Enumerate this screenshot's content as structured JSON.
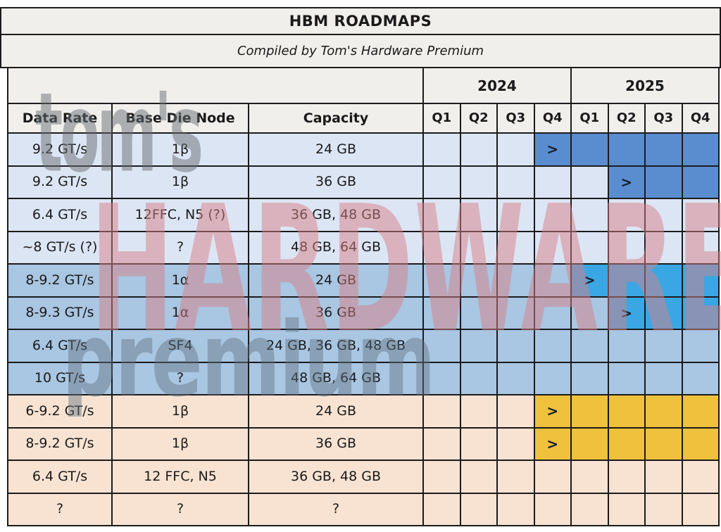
{
  "title": "HBM ROADMAPS",
  "subtitle": "Compiled by Tom's Hardware Premium",
  "watermark": {
    "line1": "tom's",
    "line2": "HARDWARE",
    "line3": "premium"
  },
  "marker": ">",
  "columns": {
    "data_rate": "Data Rate",
    "base_die_node": "Base Die Node",
    "capacity": "Capacity"
  },
  "years": [
    {
      "label": "2024",
      "quarters": [
        "Q1",
        "Q2",
        "Q3",
        "Q4"
      ]
    },
    {
      "label": "2025",
      "quarters": [
        "Q1",
        "Q2",
        "Q3",
        "Q4"
      ]
    }
  ],
  "colors": {
    "header_bg": "#f0efec",
    "group_light_blue_bg": "#dce5f4",
    "group_medium_blue_bg": "#a9c6e2",
    "group_tan_bg": "#f8e3d2",
    "highlight_blue_dark": "#5a8dd0",
    "highlight_blue_bright": "#3aa7e4",
    "highlight_yellow": "#f0c13d",
    "border": "#1b1b1b",
    "watermark_gray": "#686e72",
    "watermark_pink": "#d68086"
  },
  "rows": [
    {
      "data_rate": "9.2 GT/s",
      "base_die_node": "1β",
      "capacity": "24 GB",
      "group": "gA",
      "cells": [
        "",
        "",
        "",
        "launch",
        "fill",
        "fill",
        "fill",
        "fill"
      ]
    },
    {
      "data_rate": "9.2 GT/s",
      "base_die_node": "1β",
      "capacity": "36 GB",
      "group": "gA",
      "cells": [
        "",
        "",
        "",
        "",
        "",
        "launch",
        "fill",
        "fill"
      ]
    },
    {
      "data_rate": "6.4 GT/s",
      "base_die_node": "12FFC, N5 (?)",
      "capacity": "36 GB, 48 GB",
      "group": "gA",
      "cells": [
        "",
        "",
        "",
        "",
        "",
        "",
        "",
        ""
      ]
    },
    {
      "data_rate": "~8 GT/s (?)",
      "base_die_node": "?",
      "capacity": "48 GB, 64 GB",
      "group": "gA",
      "cells": [
        "",
        "",
        "",
        "",
        "",
        "",
        "",
        ""
      ]
    },
    {
      "data_rate": "8-9.2 GT/s",
      "base_die_node": "1α",
      "capacity": "24 GB",
      "group": "gB",
      "cells": [
        "",
        "",
        "",
        "",
        "launch",
        "fill",
        "fill",
        "fill"
      ]
    },
    {
      "data_rate": "8-9.3 GT/s",
      "base_die_node": "1α",
      "capacity": "36 GB",
      "group": "gB",
      "cells": [
        "",
        "",
        "",
        "",
        "",
        "launch",
        "fill",
        "fill"
      ]
    },
    {
      "data_rate": "6.4 GT/s",
      "base_die_node": "SF4",
      "capacity": "24 GB, 36 GB, 48 GB",
      "group": "gB",
      "cells": [
        "",
        "",
        "",
        "",
        "",
        "",
        "",
        ""
      ]
    },
    {
      "data_rate": "10 GT/s",
      "base_die_node": "?",
      "capacity": "48 GB, 64 GB",
      "group": "gB",
      "cells": [
        "",
        "",
        "",
        "",
        "",
        "",
        "",
        ""
      ]
    },
    {
      "data_rate": "6-9.2 GT/s",
      "base_die_node": "1β",
      "capacity": "24 GB",
      "group": "gC",
      "cells": [
        "",
        "",
        "",
        "launch",
        "fill",
        "fill",
        "fill",
        "fill"
      ]
    },
    {
      "data_rate": "8-9.2 GT/s",
      "base_die_node": "1β",
      "capacity": "36 GB",
      "group": "gC",
      "cells": [
        "",
        "",
        "",
        "launch",
        "fill",
        "fill",
        "fill",
        "fill"
      ]
    },
    {
      "data_rate": "6.4 GT/s",
      "base_die_node": "12 FFC, N5",
      "capacity": "36 GB, 48 GB",
      "group": "gC",
      "cells": [
        "",
        "",
        "",
        "",
        "",
        "",
        "",
        ""
      ]
    },
    {
      "data_rate": "?",
      "base_die_node": "?",
      "capacity": "?",
      "group": "gC",
      "cells": [
        "",
        "",
        "",
        "",
        "",
        "",
        "",
        ""
      ]
    }
  ]
}
